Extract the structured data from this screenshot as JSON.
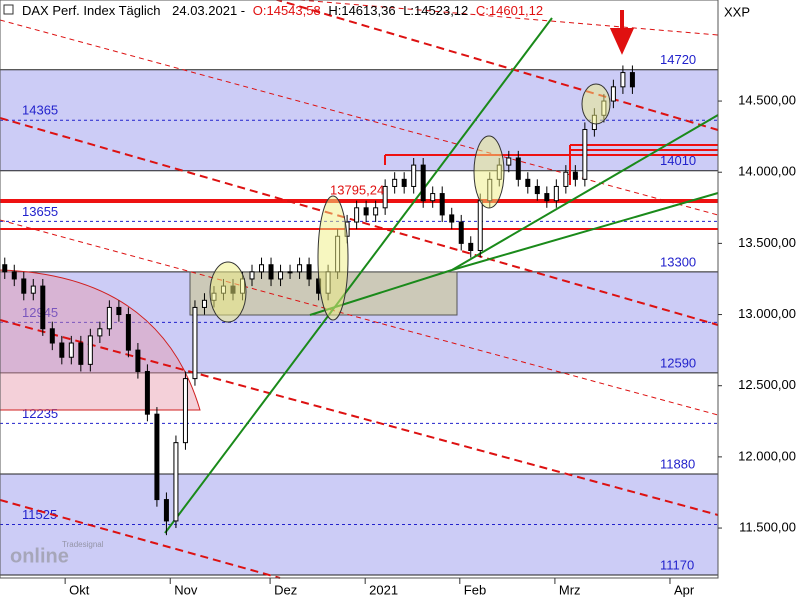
{
  "chart_data": {
    "type": "candlestick",
    "header": {
      "name": "DAX Perf. Index Täglich",
      "date": "24.03.2021 -",
      "open": "O:14543,58",
      "high": "H:14613,36",
      "low": "L:14523,12",
      "close": "C:14601,12"
    },
    "symbol": "XXP",
    "annotation": "13795,24",
    "watermark": {
      "brand": "Tradesignal",
      "word": "online"
    },
    "levels": [
      14720,
      14365,
      14010,
      13655,
      13300,
      12945,
      12590,
      12235,
      11880,
      11525,
      11170
    ],
    "x": [
      0,
      2,
      4,
      6,
      8,
      10,
      12,
      14,
      16,
      18,
      20,
      22,
      24,
      26,
      28,
      30,
      32,
      34,
      36,
      38,
      40,
      42,
      44,
      46,
      48,
      50,
      52,
      54,
      56,
      58,
      60,
      62,
      64,
      66,
      68,
      70,
      72,
      74,
      76,
      78,
      80,
      82,
      84,
      86,
      88,
      90,
      92,
      94,
      96,
      98,
      100,
      102,
      104,
      106,
      108,
      110,
      112,
      114,
      116,
      118,
      120,
      122,
      124,
      126,
      128,
      130,
      132
    ],
    "open": [
      13350,
      13300,
      13250,
      13150,
      13200,
      12900,
      12800,
      12700,
      12800,
      12650,
      12850,
      12900,
      13050,
      13000,
      12750,
      12600,
      12300,
      11700,
      11550,
      12100,
      12550,
      13050,
      13100,
      13150,
      13200,
      13150,
      13250,
      13300,
      13350,
      13250,
      13300,
      13300,
      13350,
      13250,
      13150,
      13300,
      13550,
      13650,
      13750,
      13700,
      13750,
      13900,
      13950,
      13900,
      14050,
      13800,
      13850,
      13700,
      13650,
      13500,
      13450,
      13800,
      13950,
      14050,
      14100,
      13950,
      13900,
      13850,
      13800,
      13900,
      14000,
      13950,
      14300,
      14400,
      14500,
      14600,
      14700
    ],
    "high": [
      13400,
      13350,
      13300,
      13250,
      13250,
      12950,
      12850,
      12850,
      12850,
      12900,
      12950,
      13100,
      13100,
      13050,
      12800,
      12650,
      12350,
      11750,
      12150,
      12600,
      13100,
      13150,
      13200,
      13250,
      13250,
      13300,
      13350,
      13400,
      13400,
      13350,
      13350,
      13400,
      13400,
      13300,
      13350,
      13600,
      13700,
      13800,
      13800,
      13800,
      13950,
      14000,
      14000,
      14100,
      14100,
      13900,
      13900,
      13750,
      13700,
      13550,
      13850,
      14000,
      14100,
      14150,
      14150,
      14000,
      13950,
      13900,
      13950,
      14050,
      14050,
      14350,
      14450,
      14550,
      14650,
      14750,
      14750
    ],
    "low": [
      13250,
      13200,
      13100,
      13100,
      12850,
      12750,
      12650,
      12650,
      12600,
      12600,
      12800,
      12850,
      12950,
      12700,
      12550,
      12250,
      11650,
      11450,
      11500,
      12050,
      12500,
      13000,
      13050,
      13100,
      13100,
      13100,
      13200,
      13250,
      13200,
      13200,
      13250,
      13250,
      13200,
      13100,
      13100,
      13250,
      13500,
      13600,
      13650,
      13650,
      13700,
      13850,
      13850,
      13850,
      13750,
      13750,
      13650,
      13600,
      13450,
      13400,
      13400,
      13750,
      13900,
      14000,
      13900,
      13850,
      13800,
      13750,
      13750,
      13850,
      13900,
      13900,
      14250,
      14350,
      14450,
      14550,
      14550
    ],
    "close": [
      13300,
      13250,
      13150,
      13200,
      12900,
      12800,
      12700,
      12800,
      12650,
      12850,
      12900,
      13050,
      13000,
      12750,
      12600,
      12300,
      11700,
      11550,
      12100,
      12550,
      13050,
      13100,
      13150,
      13200,
      13150,
      13250,
      13300,
      13350,
      13250,
      13300,
      13300,
      13350,
      13250,
      13150,
      13300,
      13550,
      13650,
      13750,
      13700,
      13750,
      13900,
      13950,
      13900,
      14050,
      13800,
      13850,
      13700,
      13650,
      13500,
      13450,
      13800,
      13950,
      14050,
      14100,
      13950,
      13900,
      13850,
      13800,
      13900,
      14000,
      13950,
      14300,
      14400,
      14500,
      14600,
      14700,
      14600
    ],
    "up_color": "#ffffff",
    "down_color": "#000000",
    "xlim": [
      -1,
      150
    ],
    "ylim": [
      11149,
      15210
    ],
    "xticks": [
      {
        "value": 12.7,
        "label": "Okt"
      },
      {
        "value": 34.8,
        "label": "Nov"
      },
      {
        "value": 55.8,
        "label": "Dez"
      },
      {
        "value": 75.8,
        "label": "2021"
      },
      {
        "value": 95.7,
        "label": "Feb"
      },
      {
        "value": 115.7,
        "label": "Mrz"
      },
      {
        "value": 139.9,
        "label": "Apr"
      }
    ],
    "yticks": [
      {
        "value": 11500,
        "label": "11.500,00"
      },
      {
        "value": 12000,
        "label": "12.000,00"
      },
      {
        "value": 12500,
        "label": "12.500,00"
      },
      {
        "value": 13000,
        "label": "13.000,00"
      },
      {
        "value": 13500,
        "label": "13.500,00"
      },
      {
        "value": 14000,
        "label": "14.000,00"
      },
      {
        "value": 14500,
        "label": "14.500,00"
      }
    ]
  }
}
